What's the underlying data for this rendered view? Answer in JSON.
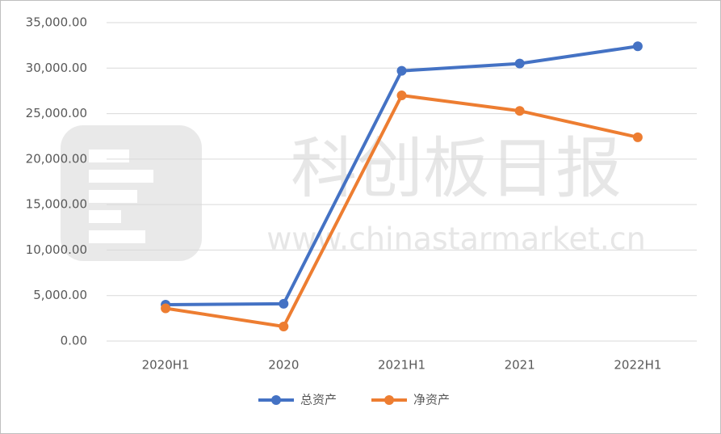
{
  "chart_data": {
    "type": "line",
    "categories": [
      "2020H1",
      "2020",
      "2021H1",
      "2021",
      "2022H1"
    ],
    "series": [
      {
        "name": "总资产",
        "color": "#4472c4",
        "values": [
          4000,
          4100,
          29700,
          30500,
          32400
        ]
      },
      {
        "name": "净资产",
        "color": "#ed7d31",
        "values": [
          3600,
          1600,
          27000,
          25300,
          22400
        ]
      }
    ],
    "ylim": [
      0,
      35000
    ],
    "yticks": [
      {
        "value": 0,
        "label": "0.00"
      },
      {
        "value": 5000,
        "label": "5,000.00"
      },
      {
        "value": 10000,
        "label": "10,000.00"
      },
      {
        "value": 15000,
        "label": "15,000.00"
      },
      {
        "value": 20000,
        "label": "20,000.00"
      },
      {
        "value": 25000,
        "label": "25,000.00"
      },
      {
        "value": 30000,
        "label": "30,000.00"
      },
      {
        "value": 35000,
        "label": "35,000.00"
      }
    ],
    "grid": true,
    "legend": "bottom",
    "watermark": {
      "title": "科创板日报",
      "url": "www.chinastarmarket.cn"
    }
  }
}
